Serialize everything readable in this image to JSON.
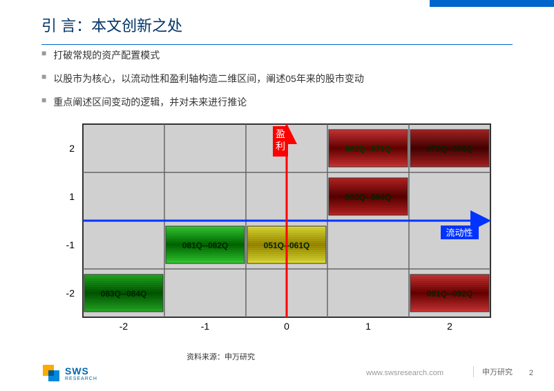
{
  "title": "引 言：本文创新之处",
  "bullets": [
    "打破常规的资产配置模式",
    "以股市为核心，以流动性和盈利轴构造二维区间，阐述05年来的股市变动",
    "重点阐述区间变动的逻辑，并对未来进行推论"
  ],
  "chart": {
    "x_axis_label": "流动性",
    "y_axis_label": "盈利",
    "x_ticks": [
      -2,
      -1,
      0,
      1,
      2
    ],
    "y_ticks": [
      2,
      1,
      -1,
      -2
    ],
    "xlim": [
      -2.5,
      2.5
    ],
    "ylim": [
      -2.5,
      2.5
    ],
    "grid_bg": "#d0d0d0",
    "grid_line": "#666666",
    "border_color": "#333333",
    "x_arrow_color": "#0033ff",
    "y_arrow_color": "#ff0000",
    "x_label_bg": "#0033ff",
    "y_label_bg": "#ff0000",
    "label_text_color": "#ffffff",
    "tick_font_size": 14,
    "label_font_size": 14,
    "cell_font_size": 12,
    "cell_font_weight": "bold",
    "cells": [
      {
        "col": 3,
        "row": 0,
        "label": "062Q--071Q",
        "bg1": "#aa0000",
        "bg2": "#660000",
        "txt": "#003300"
      },
      {
        "col": 4,
        "row": 0,
        "label": "072Q--074Q",
        "bg1": "#880000",
        "bg2": "#440000",
        "txt": "#002200"
      },
      {
        "col": 3,
        "row": 1,
        "label": "093Q--094Q",
        "bg1": "#990000",
        "bg2": "#550000",
        "txt": "#002200"
      },
      {
        "col": 1,
        "row": 2,
        "label": "081Q--082Q",
        "bg1": "#00aa00",
        "bg2": "#006600",
        "txt": "#002200"
      },
      {
        "col": 2,
        "row": 2,
        "label": "051Q--061Q",
        "bg1": "#ccbb00",
        "bg2": "#998800",
        "txt": "#002200"
      },
      {
        "col": 0,
        "row": 3,
        "label": "083Q--084Q",
        "bg1": "#009900",
        "bg2": "#005500",
        "txt": "#002200"
      },
      {
        "col": 4,
        "row": 3,
        "label": "091Q--092Q",
        "bg1": "#aa0000",
        "bg2": "#660000",
        "txt": "#002200"
      }
    ]
  },
  "source": "资料来源：申万研究",
  "logo_text": "SWS",
  "logo_sub": "RESEARCH",
  "url": "www.swsresearch.com",
  "brand": "申万研究",
  "page_num": "2",
  "colors": {
    "accent_blue": "#0066cc",
    "title_color": "#003366"
  }
}
